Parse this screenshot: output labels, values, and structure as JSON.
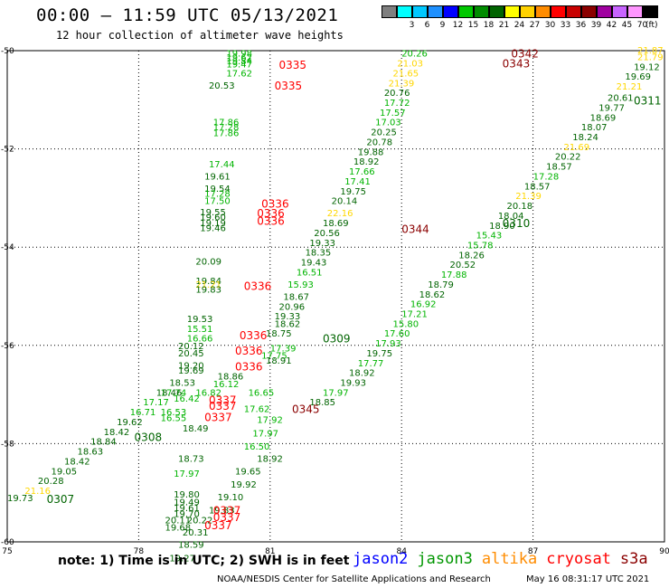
{
  "header": {
    "title": "00:00 – 11:59 UTC 05/13/2021",
    "subtitle": "12 hour collection of altimeter wave heights"
  },
  "legend": {
    "unit": "(ft)",
    "bins": [
      {
        "label": "",
        "color": "#7f7f7f"
      },
      {
        "label": "3",
        "color": "#00ffff"
      },
      {
        "label": "6",
        "color": "#00c8ff"
      },
      {
        "label": "9",
        "color": "#1e90ff"
      },
      {
        "label": "12",
        "color": "#0000ff"
      },
      {
        "label": "15",
        "color": "#00c800"
      },
      {
        "label": "18",
        "color": "#008c00"
      },
      {
        "label": "21",
        "color": "#006400"
      },
      {
        "label": "24",
        "color": "#ffff00"
      },
      {
        "label": "27",
        "color": "#ffd200"
      },
      {
        "label": "30",
        "color": "#ff8c00"
      },
      {
        "label": "33",
        "color": "#ff0000"
      },
      {
        "label": "36",
        "color": "#c80000"
      },
      {
        "label": "39",
        "color": "#8b0000"
      },
      {
        "label": "42",
        "color": "#a000a0"
      },
      {
        "label": "45",
        "color": "#c864ff"
      },
      {
        "label": "70",
        "color": "#ff96ff"
      },
      {
        "label": "",
        "color": "#000000"
      }
    ]
  },
  "map": {
    "lon_range": [
      75,
      90
    ],
    "lat_range": [
      -50,
      -60
    ],
    "x_ticks": [
      {
        "v": 75,
        "label": "75"
      },
      {
        "v": 78,
        "label": "78"
      },
      {
        "v": 81,
        "label": "81"
      },
      {
        "v": 84,
        "label": "84"
      },
      {
        "v": 87,
        "label": "87"
      },
      {
        "v": 90,
        "label": "90"
      }
    ],
    "y_ticks": [
      {
        "v": -50,
        "label": "-50"
      },
      {
        "v": -52,
        "label": "-52"
      },
      {
        "v": -54,
        "label": "-54"
      },
      {
        "v": -56,
        "label": "-56"
      },
      {
        "v": -58,
        "label": "-58"
      },
      {
        "v": -60,
        "label": "-60"
      }
    ],
    "grid": true
  },
  "colors": {
    "jason2": "#0000ff",
    "jason3": "#009600",
    "altika": "#ff8c00",
    "cryosat": "#ff0000",
    "s3a": "#8b0000",
    "green_light": "#00b400",
    "green_dark": "#006400",
    "yellow": "#ffd700"
  },
  "passes": [
    {
      "label": "0342",
      "lon": 86.5,
      "lat": -50.05,
      "color": "#8b0000"
    },
    {
      "label": "0343",
      "lon": 86.3,
      "lat": -50.25,
      "color": "#8b0000"
    },
    {
      "label": "0335",
      "lon": 81.2,
      "lat": -50.28,
      "color": "#ff0000"
    },
    {
      "label": "0335",
      "lon": 81.1,
      "lat": -50.7,
      "color": "#ff0000"
    },
    {
      "label": "0311",
      "lon": 89.5,
      "lat": -51.0,
      "color": "#006400"
    },
    {
      "label": "0336",
      "lon": 80.8,
      "lat": -53.1,
      "color": "#ff0000"
    },
    {
      "label": "0336",
      "lon": 80.7,
      "lat": -53.3,
      "color": "#ff0000"
    },
    {
      "label": "0336",
      "lon": 80.7,
      "lat": -53.45,
      "color": "#ff0000"
    },
    {
      "label": "0344",
      "lon": 84.0,
      "lat": -53.62,
      "color": "#8b0000"
    },
    {
      "label": "0310",
      "lon": 86.3,
      "lat": -53.5,
      "color": "#006400"
    },
    {
      "label": "0336",
      "lon": 80.4,
      "lat": -54.78,
      "color": "#ff0000"
    },
    {
      "label": "0336",
      "lon": 80.3,
      "lat": -55.78,
      "color": "#ff0000"
    },
    {
      "label": "0309",
      "lon": 82.2,
      "lat": -55.85,
      "color": "#006400"
    },
    {
      "label": "0336",
      "lon": 80.2,
      "lat": -56.1,
      "color": "#ff0000"
    },
    {
      "label": "0336",
      "lon": 80.2,
      "lat": -56.42,
      "color": "#ff0000"
    },
    {
      "label": "0337",
      "lon": 79.6,
      "lat": -57.1,
      "color": "#ff0000"
    },
    {
      "label": "0337",
      "lon": 79.6,
      "lat": -57.22,
      "color": "#ff0000"
    },
    {
      "label": "0345",
      "lon": 81.5,
      "lat": -57.28,
      "color": "#8b0000"
    },
    {
      "label": "0337",
      "lon": 79.5,
      "lat": -57.45,
      "color": "#ff0000"
    },
    {
      "label": "0308",
      "lon": 77.9,
      "lat": -57.85,
      "color": "#006400"
    },
    {
      "label": "0307",
      "lon": 75.9,
      "lat": -59.12,
      "color": "#006400"
    },
    {
      "label": "0337",
      "lon": 79.7,
      "lat": -59.35,
      "color": "#ff0000"
    },
    {
      "label": "0337",
      "lon": 79.7,
      "lat": -59.48,
      "color": "#ff0000"
    },
    {
      "label": "0337",
      "lon": 79.5,
      "lat": -59.65,
      "color": "#ff0000"
    }
  ],
  "observations": [
    {
      "value": "19.98",
      "lon": 80.0,
      "lat": -50.05,
      "color": "#00b400"
    },
    {
      "value": "19.62",
      "lon": 80.0,
      "lat": -50.13,
      "color": "#00b400"
    },
    {
      "value": "19.84",
      "lon": 80.0,
      "lat": -50.2,
      "color": "#00b400"
    },
    {
      "value": "19.47",
      "lon": 80.0,
      "lat": -50.27,
      "color": "#00b400"
    },
    {
      "value": "17.62",
      "lon": 80.0,
      "lat": -50.45,
      "color": "#00b400"
    },
    {
      "value": "20.53",
      "lon": 79.6,
      "lat": -50.7,
      "color": "#006400"
    },
    {
      "value": "17.86",
      "lon": 79.7,
      "lat": -51.45,
      "color": "#00b400"
    },
    {
      "value": "17.28",
      "lon": 79.7,
      "lat": -51.55,
      "color": "#00b400"
    },
    {
      "value": "17.86",
      "lon": 79.7,
      "lat": -51.67,
      "color": "#00b400"
    },
    {
      "value": "17.44",
      "lon": 79.6,
      "lat": -52.3,
      "color": "#00b400"
    },
    {
      "value": "19.61",
      "lon": 79.5,
      "lat": -52.55,
      "color": "#006400"
    },
    {
      "value": "19.54",
      "lon": 79.5,
      "lat": -52.8,
      "color": "#006400"
    },
    {
      "value": "17.28",
      "lon": 79.5,
      "lat": -52.9,
      "color": "#00b400"
    },
    {
      "value": "17.50",
      "lon": 79.5,
      "lat": -53.05,
      "color": "#00b400"
    },
    {
      "value": "19.55",
      "lon": 79.4,
      "lat": -53.28,
      "color": "#006400"
    },
    {
      "value": "19.60",
      "lon": 79.4,
      "lat": -53.38,
      "color": "#006400"
    },
    {
      "value": "19.19",
      "lon": 79.4,
      "lat": -53.5,
      "color": "#006400"
    },
    {
      "value": "19.46",
      "lon": 79.4,
      "lat": -53.6,
      "color": "#006400"
    },
    {
      "value": "20.09",
      "lon": 79.3,
      "lat": -54.28,
      "color": "#006400"
    },
    {
      "value": "19.84",
      "lon": 79.3,
      "lat": -54.68,
      "color": "#006400"
    },
    {
      "value": "21.21",
      "lon": 79.3,
      "lat": -54.75,
      "color": "#ffd700"
    },
    {
      "value": "19.83",
      "lon": 79.3,
      "lat": -54.85,
      "color": "#006400"
    },
    {
      "value": "19.53",
      "lon": 79.1,
      "lat": -55.45,
      "color": "#006400"
    },
    {
      "value": "15.51",
      "lon": 79.1,
      "lat": -55.65,
      "color": "#00b400"
    },
    {
      "value": "16.66",
      "lon": 79.1,
      "lat": -55.85,
      "color": "#00b400"
    },
    {
      "value": "20.12",
      "lon": 78.9,
      "lat": -56.0,
      "color": "#006400"
    },
    {
      "value": "20.45",
      "lon": 78.9,
      "lat": -56.15,
      "color": "#006400"
    },
    {
      "value": "19.20",
      "lon": 78.9,
      "lat": -56.4,
      "color": "#006400"
    },
    {
      "value": "19.69",
      "lon": 78.9,
      "lat": -56.5,
      "color": "#006400"
    },
    {
      "value": "18.86",
      "lon": 79.8,
      "lat": -56.62,
      "color": "#006400"
    },
    {
      "value": "16.12",
      "lon": 79.7,
      "lat": -56.78,
      "color": "#00b400"
    },
    {
      "value": "17.74",
      "lon": 78.5,
      "lat": -56.95,
      "color": "#00b400"
    },
    {
      "value": "16.82",
      "lon": 79.3,
      "lat": -56.95,
      "color": "#00b400"
    },
    {
      "value": "16.65",
      "lon": 80.5,
      "lat": -56.95,
      "color": "#00b400"
    },
    {
      "value": "16.42",
      "lon": 78.8,
      "lat": -57.07,
      "color": "#00b400"
    },
    {
      "value": "17.62",
      "lon": 80.4,
      "lat": -57.28,
      "color": "#00b400"
    },
    {
      "value": "16.53",
      "lon": 78.5,
      "lat": -57.35,
      "color": "#00b400"
    },
    {
      "value": "16.55",
      "lon": 78.5,
      "lat": -57.47,
      "color": "#00b400"
    },
    {
      "value": "17.92",
      "lon": 80.7,
      "lat": -57.5,
      "color": "#00b400"
    },
    {
      "value": "18.49",
      "lon": 79.0,
      "lat": -57.68,
      "color": "#006400"
    },
    {
      "value": "17.97",
      "lon": 80.6,
      "lat": -57.78,
      "color": "#00b400"
    },
    {
      "value": "16.50",
      "lon": 80.4,
      "lat": -58.05,
      "color": "#00b400"
    },
    {
      "value": "18.73",
      "lon": 78.9,
      "lat": -58.3,
      "color": "#006400"
    },
    {
      "value": "18.92",
      "lon": 80.7,
      "lat": -58.3,
      "color": "#006400"
    },
    {
      "value": "17.97",
      "lon": 78.8,
      "lat": -58.6,
      "color": "#00b400"
    },
    {
      "value": "19.65",
      "lon": 80.2,
      "lat": -58.55,
      "color": "#006400"
    },
    {
      "value": "19.92",
      "lon": 80.1,
      "lat": -58.82,
      "color": "#006400"
    },
    {
      "value": "19.80",
      "lon": 78.8,
      "lat": -59.02,
      "color": "#006400"
    },
    {
      "value": "19.10",
      "lon": 79.8,
      "lat": -59.08,
      "color": "#006400"
    },
    {
      "value": "19.49",
      "lon": 78.8,
      "lat": -59.18,
      "color": "#006400"
    },
    {
      "value": "19.61",
      "lon": 78.8,
      "lat": -59.3,
      "color": "#006400"
    },
    {
      "value": "19.83",
      "lon": 79.6,
      "lat": -59.35,
      "color": "#006400"
    },
    {
      "value": "19.70",
      "lon": 78.8,
      "lat": -59.42,
      "color": "#006400"
    },
    {
      "value": "20.11",
      "lon": 78.6,
      "lat": -59.55,
      "color": "#006400"
    },
    {
      "value": "20.22",
      "lon": 79.1,
      "lat": -59.55,
      "color": "#006400"
    },
    {
      "value": "19.68",
      "lon": 78.6,
      "lat": -59.7,
      "color": "#006400"
    },
    {
      "value": "20.31",
      "lon": 79.0,
      "lat": -59.8,
      "color": "#006400"
    },
    {
      "value": "18.59",
      "lon": 78.9,
      "lat": -60.05,
      "color": "#006400"
    },
    {
      "value": "19.27",
      "lon": 78.7,
      "lat": -60.32,
      "color": "#006400"
    },
    {
      "value": "20.26",
      "lon": 84.0,
      "lat": -50.05,
      "color": "#00b400"
    },
    {
      "value": "21.03",
      "lon": 83.9,
      "lat": -50.25,
      "color": "#ffd700"
    },
    {
      "value": "21.65",
      "lon": 83.8,
      "lat": -50.45,
      "color": "#ffd700"
    },
    {
      "value": "21.39",
      "lon": 83.7,
      "lat": -50.65,
      "color": "#ffd700"
    },
    {
      "value": "20.76",
      "lon": 83.6,
      "lat": -50.85,
      "color": "#006400"
    },
    {
      "value": "17.72",
      "lon": 83.6,
      "lat": -51.05,
      "color": "#00b400"
    },
    {
      "value": "17.57",
      "lon": 83.5,
      "lat": -51.25,
      "color": "#00b400"
    },
    {
      "value": "17.03",
      "lon": 83.4,
      "lat": -51.45,
      "color": "#00b400"
    },
    {
      "value": "20.25",
      "lon": 83.3,
      "lat": -51.65,
      "color": "#006400"
    },
    {
      "value": "20.78",
      "lon": 83.2,
      "lat": -51.85,
      "color": "#006400"
    },
    {
      "value": "19.88",
      "lon": 83.0,
      "lat": -52.05,
      "color": "#006400"
    },
    {
      "value": "18.92",
      "lon": 82.9,
      "lat": -52.25,
      "color": "#006400"
    },
    {
      "value": "17.66",
      "lon": 82.8,
      "lat": -52.45,
      "color": "#00b400"
    },
    {
      "value": "17.41",
      "lon": 82.7,
      "lat": -52.65,
      "color": "#00b400"
    },
    {
      "value": "19.75",
      "lon": 82.6,
      "lat": -52.85,
      "color": "#006400"
    },
    {
      "value": "20.14",
      "lon": 82.4,
      "lat": -53.05,
      "color": "#006400"
    },
    {
      "value": "22.16",
      "lon": 82.3,
      "lat": -53.3,
      "color": "#ffd700"
    },
    {
      "value": "18.69",
      "lon": 82.2,
      "lat": -53.5,
      "color": "#006400"
    },
    {
      "value": "20.56",
      "lon": 82.0,
      "lat": -53.7,
      "color": "#006400"
    },
    {
      "value": "19.33",
      "lon": 81.9,
      "lat": -53.9,
      "color": "#006400"
    },
    {
      "value": "18.35",
      "lon": 81.8,
      "lat": -54.1,
      "color": "#006400"
    },
    {
      "value": "19.43",
      "lon": 81.7,
      "lat": -54.3,
      "color": "#006400"
    },
    {
      "value": "16.51",
      "lon": 81.6,
      "lat": -54.5,
      "color": "#00b400"
    },
    {
      "value": "15.93",
      "lon": 81.4,
      "lat": -54.75,
      "color": "#00b400"
    },
    {
      "value": "18.67",
      "lon": 81.3,
      "lat": -55.0,
      "color": "#006400"
    },
    {
      "value": "20.96",
      "lon": 81.2,
      "lat": -55.2,
      "color": "#006400"
    },
    {
      "value": "19.33",
      "lon": 81.1,
      "lat": -55.4,
      "color": "#006400"
    },
    {
      "value": "18.62",
      "lon": 81.1,
      "lat": -55.55,
      "color": "#006400"
    },
    {
      "value": "18.75",
      "lon": 80.9,
      "lat": -55.75,
      "color": "#006400"
    },
    {
      "value": "17.39",
      "lon": 81.0,
      "lat": -56.05,
      "color": "#00b400"
    },
    {
      "value": "17.75",
      "lon": 80.8,
      "lat": -56.2,
      "color": "#00b400"
    },
    {
      "value": "18.91",
      "lon": 80.9,
      "lat": -56.3,
      "color": "#006400"
    },
    {
      "value": "21.87",
      "lon": 89.7,
      "lat": -49.98,
      "color": "#ffd700"
    },
    {
      "value": "21.79",
      "lon": 89.6,
      "lat": -50.12,
      "color": "#ffd700"
    },
    {
      "value": "19.12",
      "lon": 89.3,
      "lat": -50.32,
      "color": "#006400"
    },
    {
      "value": "19.69",
      "lon": 89.1,
      "lat": -50.52,
      "color": "#006400"
    },
    {
      "value": "21.21",
      "lon": 88.9,
      "lat": -50.72,
      "color": "#ffd700"
    },
    {
      "value": "20.61",
      "lon": 88.7,
      "lat": -50.95,
      "color": "#006400"
    },
    {
      "value": "19.77",
      "lon": 88.5,
      "lat": -51.15,
      "color": "#006400"
    },
    {
      "value": "18.69",
      "lon": 88.3,
      "lat": -51.35,
      "color": "#006400"
    },
    {
      "value": "18.07",
      "lon": 88.1,
      "lat": -51.55,
      "color": "#006400"
    },
    {
      "value": "18.24",
      "lon": 87.9,
      "lat": -51.75,
      "color": "#006400"
    },
    {
      "value": "21.69",
      "lon": 87.7,
      "lat": -51.95,
      "color": "#ffd700"
    },
    {
      "value": "20.22",
      "lon": 87.5,
      "lat": -52.15,
      "color": "#006400"
    },
    {
      "value": "18.57",
      "lon": 87.3,
      "lat": -52.35,
      "color": "#006400"
    },
    {
      "value": "17.28",
      "lon": 87.0,
      "lat": -52.55,
      "color": "#00b400"
    },
    {
      "value": "18.57",
      "lon": 86.8,
      "lat": -52.75,
      "color": "#006400"
    },
    {
      "value": "21.39",
      "lon": 86.6,
      "lat": -52.95,
      "color": "#ffd700"
    },
    {
      "value": "20.18",
      "lon": 86.4,
      "lat": -53.15,
      "color": "#006400"
    },
    {
      "value": "18.04",
      "lon": 86.2,
      "lat": -53.35,
      "color": "#006400"
    },
    {
      "value": "18.90",
      "lon": 86.0,
      "lat": -53.55,
      "color": "#006400"
    },
    {
      "value": "15.43",
      "lon": 85.7,
      "lat": -53.75,
      "color": "#00b400"
    },
    {
      "value": "15.78",
      "lon": 85.5,
      "lat": -53.95,
      "color": "#00b400"
    },
    {
      "value": "18.26",
      "lon": 85.3,
      "lat": -54.15,
      "color": "#006400"
    },
    {
      "value": "20.52",
      "lon": 85.1,
      "lat": -54.35,
      "color": "#006400"
    },
    {
      "value": "17.88",
      "lon": 84.9,
      "lat": -54.55,
      "color": "#00b400"
    },
    {
      "value": "18.79",
      "lon": 84.6,
      "lat": -54.75,
      "color": "#006400"
    },
    {
      "value": "18.62",
      "lon": 84.4,
      "lat": -54.95,
      "color": "#006400"
    },
    {
      "value": "16.92",
      "lon": 84.2,
      "lat": -55.15,
      "color": "#00b400"
    },
    {
      "value": "17.21",
      "lon": 84.0,
      "lat": -55.35,
      "color": "#00b400"
    },
    {
      "value": "15.80",
      "lon": 83.8,
      "lat": -55.55,
      "color": "#00b400"
    },
    {
      "value": "17.60",
      "lon": 83.6,
      "lat": -55.75,
      "color": "#00b400"
    },
    {
      "value": "17.93",
      "lon": 83.4,
      "lat": -55.95,
      "color": "#00b400"
    },
    {
      "value": "19.75",
      "lon": 83.2,
      "lat": -56.15,
      "color": "#006400"
    },
    {
      "value": "17.77",
      "lon": 83.0,
      "lat": -56.35,
      "color": "#00b400"
    },
    {
      "value": "18.92",
      "lon": 82.8,
      "lat": -56.55,
      "color": "#006400"
    },
    {
      "value": "19.93",
      "lon": 82.6,
      "lat": -56.75,
      "color": "#006400"
    },
    {
      "value": "17.97",
      "lon": 82.2,
      "lat": -56.95,
      "color": "#00b400"
    },
    {
      "value": "18.85",
      "lon": 81.9,
      "lat": -57.15,
      "color": "#006400"
    },
    {
      "value": "19.73",
      "lon": 75.0,
      "lat": -59.1,
      "color": "#006400"
    },
    {
      "value": "21.16",
      "lon": 75.4,
      "lat": -58.95,
      "color": "#ffd700"
    },
    {
      "value": "20.28",
      "lon": 75.7,
      "lat": -58.75,
      "color": "#006400"
    },
    {
      "value": "19.05",
      "lon": 76.0,
      "lat": -58.55,
      "color": "#006400"
    },
    {
      "value": "18.42",
      "lon": 76.3,
      "lat": -58.35,
      "color": "#006400"
    },
    {
      "value": "18.63",
      "lon": 76.6,
      "lat": -58.15,
      "color": "#006400"
    },
    {
      "value": "18.84",
      "lon": 76.9,
      "lat": -57.95,
      "color": "#006400"
    },
    {
      "value": "18.42",
      "lon": 77.2,
      "lat": -57.75,
      "color": "#006400"
    },
    {
      "value": "19.62",
      "lon": 77.5,
      "lat": -57.55,
      "color": "#006400"
    },
    {
      "value": "16.71",
      "lon": 77.8,
      "lat": -57.35,
      "color": "#00b400"
    },
    {
      "value": "17.17",
      "lon": 78.1,
      "lat": -57.15,
      "color": "#00b400"
    },
    {
      "value": "18.46",
      "lon": 78.4,
      "lat": -56.95,
      "color": "#006400"
    },
    {
      "value": "18.53",
      "lon": 78.7,
      "lat": -56.75,
      "color": "#006400"
    }
  ],
  "footer": {
    "note": "note: 1) Time is in UTC; 2) SWH is in feet",
    "satellites": [
      {
        "name": "jason2",
        "color": "#0000ff"
      },
      {
        "name": "jason3",
        "color": "#009600"
      },
      {
        "name": "altika",
        "color": "#ff8c00"
      },
      {
        "name": "cryosat",
        "color": "#ff0000"
      },
      {
        "name": "s3a",
        "color": "#8b0000"
      }
    ],
    "credit": "NOAA/NESDIS Center for Satellite Applications and Research",
    "timestamp": "May 16 08:31:17 UTC 2021"
  }
}
